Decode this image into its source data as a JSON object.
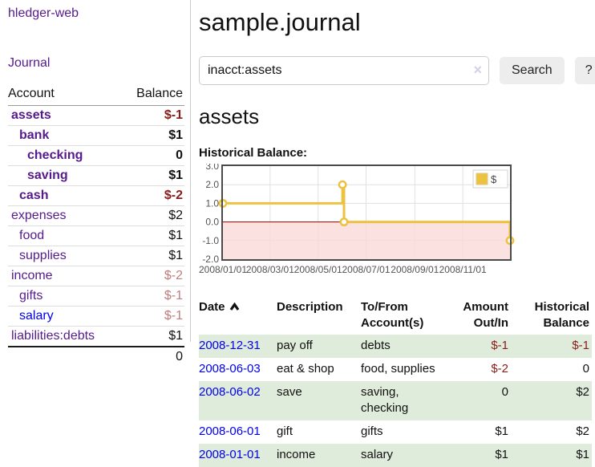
{
  "colors": {
    "link_purple": "#551a8b",
    "link_blue": "#0000ee",
    "negative": "#8b1a1a",
    "negative_muted": "#bd7d7d",
    "row_stripe_green": "#e0ecdb",
    "chart_series_gold": "#edc240",
    "chart_negative_fill": "#fbd9d9",
    "chart_zero_line": "#8b0000",
    "chart_grid": "#e0e0e0",
    "chart_border": "#4a4a4a",
    "axis_label": "#545454"
  },
  "sidebar": {
    "app_title": "hledger-web",
    "nav": {
      "journal": "Journal"
    },
    "accounts": {
      "header_account": "Account",
      "header_balance": "Balance",
      "rows": [
        {
          "name": "assets",
          "balance": "$-1",
          "indent": 0,
          "bold": true,
          "value_style": "negative",
          "link_style": "visited"
        },
        {
          "name": "bank",
          "balance": "$1",
          "indent": 1,
          "bold": true,
          "value_style": "normal",
          "link_style": "visited"
        },
        {
          "name": "checking",
          "balance": "0",
          "indent": 2,
          "bold": true,
          "value_style": "normal",
          "link_style": "visited"
        },
        {
          "name": "saving",
          "balance": "$1",
          "indent": 2,
          "bold": true,
          "value_style": "normal",
          "link_style": "visited"
        },
        {
          "name": "cash",
          "balance": "$-2",
          "indent": 1,
          "bold": true,
          "value_style": "negative",
          "link_style": "visited"
        },
        {
          "name": "expenses",
          "balance": "$2",
          "indent": 0,
          "bold": false,
          "value_style": "normal",
          "link_style": "visited"
        },
        {
          "name": "food",
          "balance": "$1",
          "indent": 1,
          "bold": false,
          "value_style": "normal",
          "link_style": "visited"
        },
        {
          "name": "supplies",
          "balance": "$1",
          "indent": 1,
          "bold": false,
          "value_style": "normal",
          "link_style": "visited"
        },
        {
          "name": "income",
          "balance": "$-2",
          "indent": 0,
          "bold": false,
          "value_style": "negative-muted",
          "link_style": "visited"
        },
        {
          "name": "gifts",
          "balance": "$-1",
          "indent": 1,
          "bold": false,
          "value_style": "negative-muted",
          "link_style": "visited"
        },
        {
          "name": "salary",
          "balance": "$-1",
          "indent": 1,
          "bold": false,
          "value_style": "negative-muted",
          "link_style": "unvisited"
        },
        {
          "name": "liabilities:debts",
          "balance": "$1",
          "indent": 0,
          "bold": false,
          "value_style": "normal",
          "link_style": "visited"
        }
      ],
      "total": "0"
    }
  },
  "main": {
    "page_title": "sample.journal",
    "search": {
      "query": "inacct:assets",
      "clear_icon": "×",
      "search_button": "Search",
      "help_button": "?"
    },
    "section_heading": "assets",
    "chart_heading": "Historical Balance:"
  },
  "chart_data": {
    "type": "line",
    "style": "step",
    "title": "Historical Balance",
    "series": [
      {
        "name": "$",
        "points": [
          [
            "2008-01-01",
            1
          ],
          [
            "2008-06-01",
            2
          ],
          [
            "2008-06-03",
            0
          ],
          [
            "2008-12-31",
            -1
          ]
        ]
      }
    ],
    "xlim": [
      "2008-01-01",
      "2008-12-31"
    ],
    "ylim": [
      -2.0,
      3.0
    ],
    "yticks": [
      "3.0",
      "2.0",
      "1.0",
      "0.0",
      "-1.0",
      "-2.0"
    ],
    "ytick_values": [
      3,
      2,
      1,
      0,
      -1,
      -2
    ],
    "xtick_dates": [
      "2008-01-01",
      "2008-03-01",
      "2008-05-01",
      "2008-07-01",
      "2008-09-01",
      "2008-11-01"
    ],
    "xtick_labels": [
      "2008/01/01",
      "2008/03/01",
      "2008/05/01",
      "2008/07/01",
      "2008/09/01",
      "2008/11/01"
    ],
    "legend": {
      "label": "$",
      "position": "top-right"
    },
    "grid": true,
    "negative_region_shaded": true
  },
  "register": {
    "headers": {
      "date": "Date",
      "description": "Description",
      "accounts": "To/From Account(s)",
      "amount": "Amount Out/In",
      "balance": "Historical Balance"
    },
    "sort": {
      "column": "date",
      "direction": "ascending"
    },
    "rows": [
      {
        "date": "2008-12-31",
        "description": "pay off",
        "accounts": [
          "debts"
        ],
        "amount": "$-1",
        "amount_negative": true,
        "balance": "$-1",
        "balance_negative": true
      },
      {
        "date": "2008-06-03",
        "description": "eat & shop",
        "accounts": [
          "food, supplies"
        ],
        "amount": "$-2",
        "amount_negative": true,
        "balance": "0",
        "balance_negative": false
      },
      {
        "date": "2008-06-02",
        "description": "save",
        "accounts": [
          "saving,",
          "checking"
        ],
        "amount": "0",
        "amount_negative": false,
        "balance": "$2",
        "balance_negative": false
      },
      {
        "date": "2008-06-01",
        "description": "gift",
        "accounts": [
          "gifts"
        ],
        "amount": "$1",
        "amount_negative": false,
        "balance": "$2",
        "balance_negative": false
      },
      {
        "date": "2008-01-01",
        "description": "income",
        "accounts": [
          "salary"
        ],
        "amount": "$1",
        "amount_negative": false,
        "balance": "$1",
        "balance_negative": false
      }
    ]
  }
}
